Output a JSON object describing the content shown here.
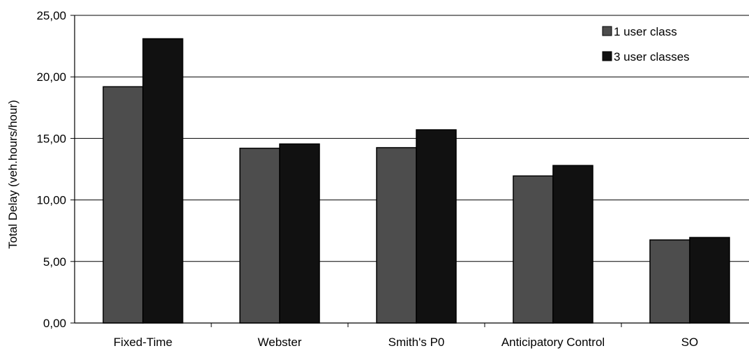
{
  "chart_data": {
    "type": "bar",
    "ylabel": "Total Delay (veh.hours/hour)",
    "ylim": [
      0,
      25
    ],
    "yticks": [
      "0,00",
      "5,00",
      "10,00",
      "15,00",
      "20,00",
      "25,00"
    ],
    "grid": true,
    "legend_position": "top-right",
    "categories": [
      "Fixed-Time",
      "Webster",
      "Smith's P0",
      "Anticipatory Control",
      "SO"
    ],
    "series": [
      {
        "name": "1 user class",
        "color": "#4d4d4d",
        "values": [
          19.2,
          14.2,
          14.25,
          11.95,
          6.75
        ]
      },
      {
        "name": "3 user classes",
        "color": "#111111",
        "values": [
          23.1,
          14.55,
          15.7,
          12.8,
          6.95
        ]
      }
    ]
  }
}
